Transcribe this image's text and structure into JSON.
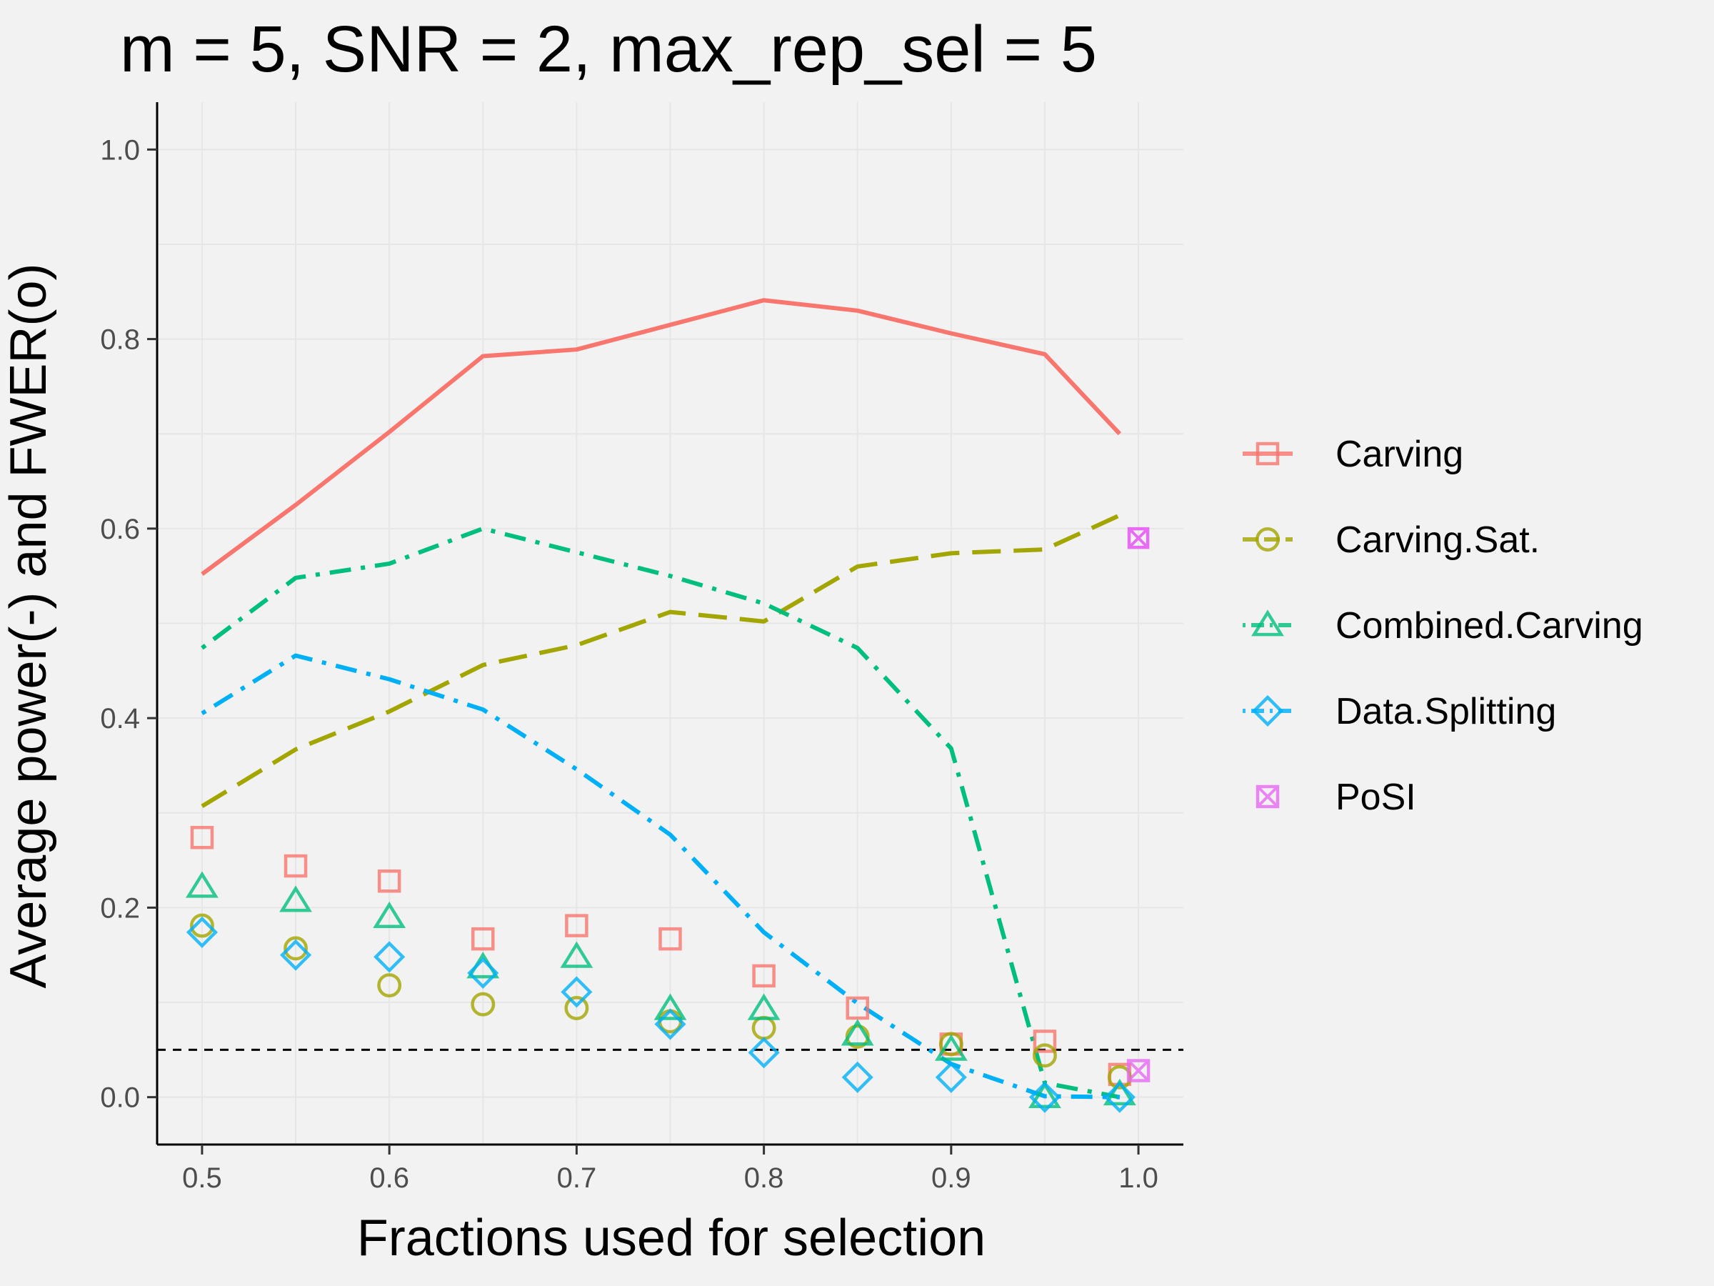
{
  "chart_data": {
    "type": "line",
    "title": "m = 5, SNR = 2, max_rep_sel = 5",
    "xlabel": "Fractions used for selection",
    "ylabel": "Average power(-) and FWER(o)",
    "xlim": [
      0.476,
      1.024
    ],
    "ylim": [
      -0.05,
      1.05
    ],
    "x_ticks": [
      "0.5",
      "0.6",
      "0.7",
      "0.8",
      "0.9",
      "1.0"
    ],
    "y_ticks": [
      "0.0",
      "0.2",
      "0.4",
      "0.6",
      "0.8",
      "1.0"
    ],
    "grid": true,
    "legend_position": "right",
    "reference_line": {
      "y": 0.05,
      "style": "dashed",
      "color": "#000000"
    },
    "series": [
      {
        "name": "Carving",
        "color": "#F8766D",
        "marker": "square",
        "line_style": "solid",
        "power": {
          "x": [
            0.5,
            0.55,
            0.6,
            0.65,
            0.7,
            0.75,
            0.8,
            0.85,
            0.9,
            0.95,
            0.99
          ],
          "y": [
            0.552,
            0.625,
            0.702,
            0.782,
            0.789,
            0.815,
            0.841,
            0.83,
            0.806,
            0.784,
            0.7
          ]
        },
        "fwer": {
          "x": [
            0.5,
            0.55,
            0.6,
            0.65,
            0.7,
            0.75,
            0.8,
            0.85,
            0.9,
            0.95,
            0.99
          ],
          "y": [
            0.274,
            0.244,
            0.228,
            0.167,
            0.181,
            0.167,
            0.128,
            0.094,
            0.056,
            0.059,
            0.024
          ]
        }
      },
      {
        "name": "Carving.Sat.",
        "color": "#A3A500",
        "marker": "circle",
        "line_style": "longdash",
        "power": {
          "x": [
            0.5,
            0.55,
            0.6,
            0.65,
            0.7,
            0.75,
            0.8,
            0.85,
            0.9,
            0.95,
            0.99
          ],
          "y": [
            0.307,
            0.367,
            0.407,
            0.456,
            0.477,
            0.512,
            0.502,
            0.56,
            0.574,
            0.578,
            0.614
          ]
        },
        "fwer": {
          "x": [
            0.5,
            0.55,
            0.6,
            0.65,
            0.7,
            0.75,
            0.8,
            0.85,
            0.9,
            0.95,
            0.99
          ],
          "y": [
            0.181,
            0.157,
            0.118,
            0.098,
            0.094,
            0.08,
            0.073,
            0.064,
            0.056,
            0.044,
            0.021
          ]
        }
      },
      {
        "name": "Combined.Carving",
        "color": "#00BF7D",
        "marker": "triangle",
        "line_style": "dotdash",
        "power": {
          "x": [
            0.5,
            0.55,
            0.6,
            0.65,
            0.7,
            0.75,
            0.8,
            0.85,
            0.9,
            0.95,
            0.99
          ],
          "y": [
            0.474,
            0.548,
            0.563,
            0.6,
            0.575,
            0.55,
            0.521,
            0.474,
            0.368,
            0.015,
            0.0
          ]
        },
        "fwer": {
          "x": [
            0.5,
            0.55,
            0.6,
            0.65,
            0.7,
            0.75,
            0.8,
            0.85,
            0.9,
            0.95,
            0.99
          ],
          "y": [
            0.222,
            0.207,
            0.19,
            0.137,
            0.148,
            0.093,
            0.093,
            0.066,
            0.05,
            0.0,
            0.003
          ]
        }
      },
      {
        "name": "Data.Splitting",
        "color": "#00B0F6",
        "marker": "diamond",
        "line_style": "dotdash",
        "power": {
          "x": [
            0.5,
            0.55,
            0.6,
            0.65,
            0.7,
            0.75,
            0.8,
            0.85,
            0.9,
            0.95,
            0.99
          ],
          "y": [
            0.405,
            0.466,
            0.441,
            0.409,
            0.346,
            0.277,
            0.174,
            0.099,
            0.035,
            0.001,
            0.0
          ]
        },
        "fwer": {
          "x": [
            0.5,
            0.55,
            0.6,
            0.65,
            0.7,
            0.75,
            0.8,
            0.85,
            0.9,
            0.95,
            0.99
          ],
          "y": [
            0.174,
            0.15,
            0.148,
            0.131,
            0.111,
            0.077,
            0.047,
            0.021,
            0.021,
            0.0,
            0.0
          ]
        }
      },
      {
        "name": "PoSI",
        "color": "#E76BF3",
        "marker": "square-cross",
        "line_style": "none",
        "power": {
          "x": [
            1.0
          ],
          "y": [
            0.59
          ]
        },
        "fwer": {
          "x": [
            1.0
          ],
          "y": [
            0.028
          ]
        }
      }
    ]
  }
}
